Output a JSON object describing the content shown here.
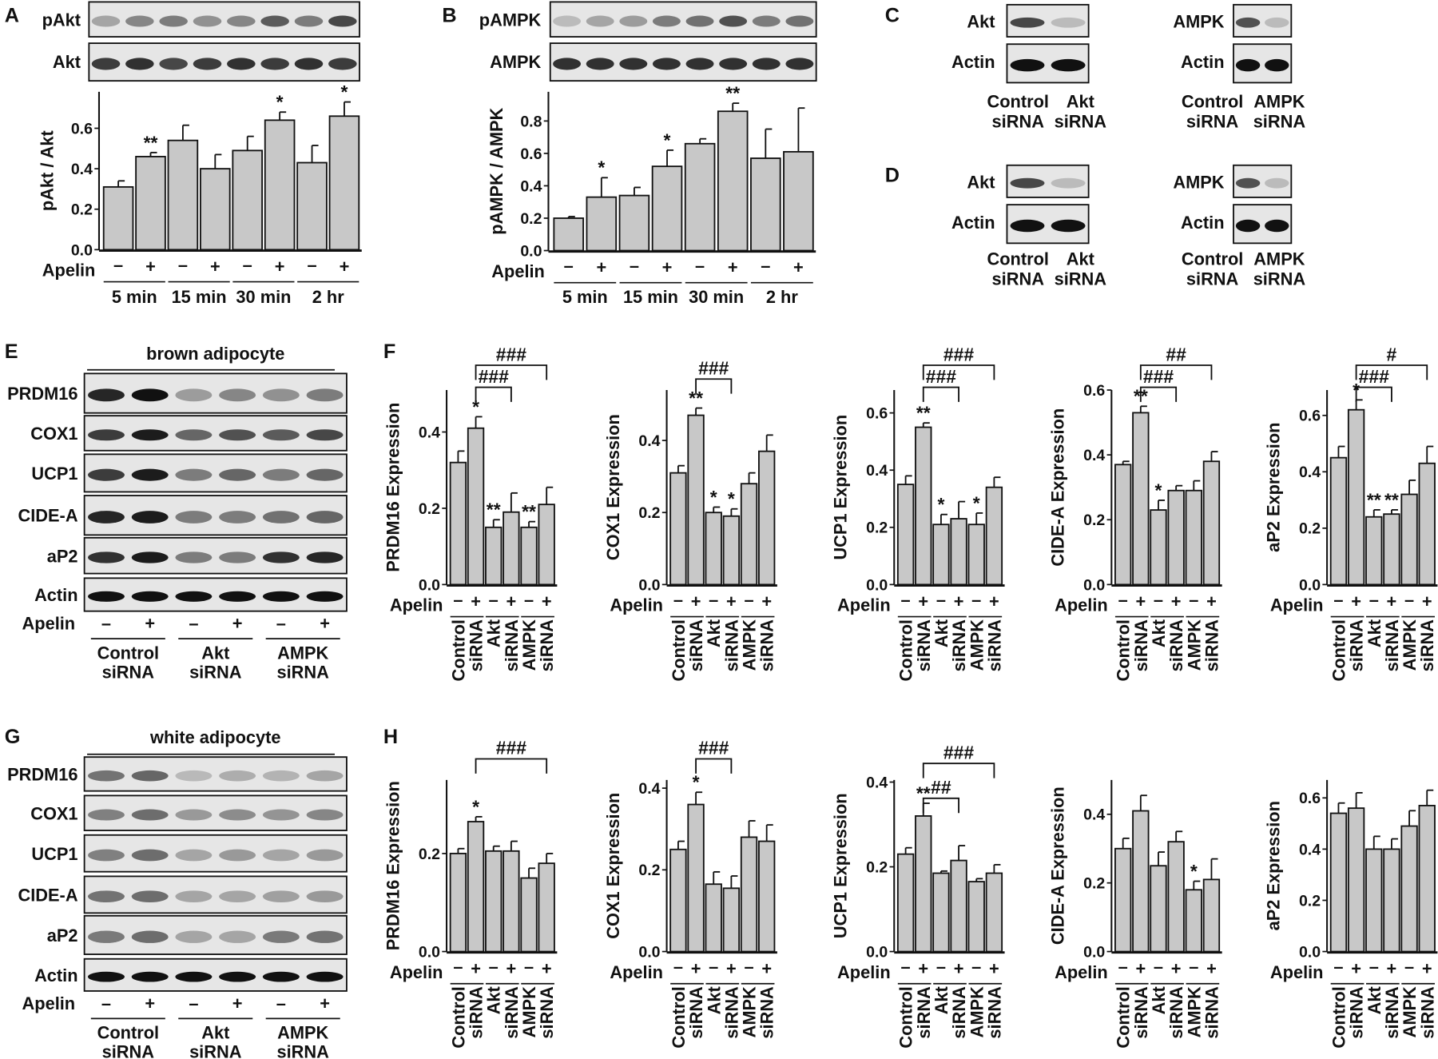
{
  "panel_labels": [
    "A",
    "B",
    "C",
    "D",
    "E",
    "F",
    "G",
    "H"
  ],
  "blots": {
    "A": {
      "rows": [
        "pAkt",
        "Akt"
      ]
    },
    "B": {
      "rows": [
        "pAMPK",
        "AMPK"
      ]
    },
    "C": {
      "left": {
        "rows": [
          "Akt",
          "Actin"
        ],
        "lanes": [
          [
            "Control",
            "siRNA"
          ],
          [
            "Akt",
            "siRNA"
          ]
        ]
      },
      "right": {
        "rows": [
          "AMPK",
          "Actin"
        ],
        "lanes": [
          [
            "Control",
            "siRNA"
          ],
          [
            "AMPK",
            "siRNA"
          ]
        ]
      }
    },
    "D": {
      "left": {
        "rows": [
          "Akt",
          "Actin"
        ],
        "lanes": [
          [
            "Control",
            "siRNA"
          ],
          [
            "Akt",
            "siRNA"
          ]
        ]
      },
      "right": {
        "rows": [
          "AMPK",
          "Actin"
        ],
        "lanes": [
          [
            "Control",
            "siRNA"
          ],
          [
            "AMPK",
            "siRNA"
          ]
        ]
      }
    },
    "E": {
      "title": "brown adipocyte",
      "rows": [
        "PRDM16",
        "COX1",
        "UCP1",
        "CIDE-A",
        "aP2",
        "Actin"
      ],
      "apelin_label": "Apelin",
      "signs": [
        "–",
        "+",
        "–",
        "+",
        "–",
        "+"
      ],
      "groups": [
        [
          "Control",
          "siRNA"
        ],
        [
          "Akt",
          "siRNA"
        ],
        [
          "AMPK",
          "siRNA"
        ]
      ]
    },
    "G": {
      "title": "white adipocyte",
      "rows": [
        "PRDM16",
        "COX1",
        "UCP1",
        "CIDE-A",
        "aP2",
        "Actin"
      ],
      "apelin_label": "Apelin",
      "signs": [
        "–",
        "+",
        "–",
        "+",
        "–",
        "+"
      ],
      "groups": [
        [
          "Control",
          "siRNA"
        ],
        [
          "Akt",
          "siRNA"
        ],
        [
          "AMPK",
          "siRNA"
        ]
      ]
    }
  },
  "chart_data": [
    {
      "id": "A",
      "type": "bar",
      "ylabel": "pAkt / Akt",
      "ylim": [
        0,
        0.78
      ],
      "yticks": [
        "0.0",
        "0.2",
        "0.4",
        "0.6"
      ],
      "ytick_values": [
        0,
        0.2,
        0.4,
        0.6
      ],
      "x_row_label": "Apelin",
      "apelin": [
        "–",
        "+",
        "–",
        "+",
        "–",
        "+",
        "–",
        "+"
      ],
      "groups": [
        "5 min",
        "15 min",
        "30 min",
        "2 hr"
      ],
      "values": [
        0.31,
        0.46,
        0.54,
        0.4,
        0.49,
        0.64,
        0.43,
        0.66
      ],
      "errors": [
        0.03,
        0.02,
        0.075,
        0.07,
        0.07,
        0.04,
        0.085,
        0.07
      ],
      "significance": [
        "",
        "**",
        "",
        "",
        "",
        "*",
        "",
        "*"
      ],
      "brackets": []
    },
    {
      "id": "B",
      "type": "bar",
      "ylabel": "pAMPK / AMPK",
      "ylim": [
        0,
        0.98
      ],
      "yticks": [
        "0.0",
        "0.2",
        "0.4",
        "0.6",
        "0.8"
      ],
      "ytick_values": [
        0,
        0.2,
        0.4,
        0.6,
        0.8
      ],
      "x_row_label": "Apelin",
      "apelin": [
        "–",
        "+",
        "–",
        "+",
        "–",
        "+",
        "–",
        "+"
      ],
      "groups": [
        "5 min",
        "15 min",
        "30 min",
        "2 hr"
      ],
      "values": [
        0.2,
        0.33,
        0.34,
        0.52,
        0.66,
        0.86,
        0.57,
        0.61
      ],
      "errors": [
        0.01,
        0.12,
        0.05,
        0.1,
        0.03,
        0.05,
        0.18,
        0.27
      ],
      "significance": [
        "",
        "*",
        "",
        "*",
        "",
        "**",
        "",
        ""
      ],
      "brackets": []
    },
    {
      "id": "F1",
      "type": "bar",
      "ylabel": "PRDM16 Expression",
      "ylim": [
        0,
        0.51
      ],
      "yticks": [
        "0.0",
        "0.2",
        "0.4"
      ],
      "ytick_values": [
        0,
        0.2,
        0.4
      ],
      "x_row_label": "Apelin",
      "apelin": [
        "–",
        "+",
        "–",
        "+",
        "–",
        "+"
      ],
      "groups": [
        [
          "Control",
          "siRNA"
        ],
        [
          "Akt",
          "siRNA"
        ],
        [
          "AMPK",
          "siRNA"
        ]
      ],
      "values": [
        0.32,
        0.41,
        0.15,
        0.19,
        0.15,
        0.21
      ],
      "errors": [
        0.03,
        0.03,
        0.02,
        0.05,
        0.015,
        0.045
      ],
      "significance": [
        "",
        "*",
        "**",
        "",
        "**",
        ""
      ],
      "brackets": [
        {
          "from": 1,
          "to": 3,
          "label": "###"
        },
        {
          "from": 1,
          "to": 5,
          "label": "###"
        }
      ]
    },
    {
      "id": "F2",
      "type": "bar",
      "ylabel": "COX1 Expression",
      "ylim": [
        0,
        0.54
      ],
      "yticks": [
        "0.0",
        "0.2",
        "0.4"
      ],
      "ytick_values": [
        0,
        0.2,
        0.4
      ],
      "x_row_label": "Apelin",
      "apelin": [
        "–",
        "+",
        "–",
        "+",
        "–",
        "+"
      ],
      "groups": [
        [
          "Control",
          "siRNA"
        ],
        [
          "Akt",
          "siRNA"
        ],
        [
          "AMPK",
          "siRNA"
        ]
      ],
      "values": [
        0.31,
        0.47,
        0.2,
        0.19,
        0.28,
        0.37
      ],
      "errors": [
        0.02,
        0.02,
        0.015,
        0.02,
        0.03,
        0.045
      ],
      "significance": [
        "",
        "**",
        "*",
        "*",
        "",
        ""
      ],
      "brackets": [
        {
          "from": 1,
          "to": 3,
          "label": "###"
        }
      ]
    },
    {
      "id": "F3",
      "type": "bar",
      "ylabel": "UCP1 Expression",
      "ylim": [
        0,
        0.68
      ],
      "yticks": [
        "0.0",
        "0.2",
        "0.4",
        "0.6"
      ],
      "ytick_values": [
        0,
        0.2,
        0.4,
        0.6
      ],
      "x_row_label": "Apelin",
      "apelin": [
        "–",
        "+",
        "–",
        "+",
        "–",
        "+"
      ],
      "groups": [
        [
          "Control",
          "siRNA"
        ],
        [
          "Akt",
          "siRNA"
        ],
        [
          "AMPK",
          "siRNA"
        ]
      ],
      "values": [
        0.35,
        0.55,
        0.21,
        0.23,
        0.21,
        0.34
      ],
      "errors": [
        0.03,
        0.015,
        0.035,
        0.06,
        0.04,
        0.035
      ],
      "significance": [
        "",
        "**",
        "*",
        "",
        "*",
        ""
      ],
      "brackets": [
        {
          "from": 1,
          "to": 3,
          "label": "###"
        },
        {
          "from": 1,
          "to": 5,
          "label": "###"
        }
      ]
    },
    {
      "id": "F4",
      "type": "bar",
      "ylabel": "CIDE-A Expression",
      "ylim": [
        0,
        0.6
      ],
      "yticks": [
        "0.0",
        "0.2",
        "0.4",
        "0.6"
      ],
      "ytick_values": [
        0,
        0.2,
        0.4,
        0.6
      ],
      "x_row_label": "Apelin",
      "apelin": [
        "–",
        "+",
        "–",
        "+",
        "–",
        "+"
      ],
      "groups": [
        [
          "Control",
          "siRNA"
        ],
        [
          "Akt",
          "siRNA"
        ],
        [
          "AMPK",
          "siRNA"
        ]
      ],
      "values": [
        0.37,
        0.53,
        0.23,
        0.29,
        0.29,
        0.38
      ],
      "errors": [
        0.01,
        0.02,
        0.03,
        0.015,
        0.03,
        0.03
      ],
      "significance": [
        "",
        "**",
        "*",
        "",
        "",
        ""
      ],
      "brackets": [
        {
          "from": 1,
          "to": 3,
          "label": "###"
        },
        {
          "from": 1,
          "to": 5,
          "label": "##"
        }
      ]
    },
    {
      "id": "F5",
      "type": "bar",
      "ylabel": "aP2 Expression",
      "ylim": [
        0,
        0.69
      ],
      "yticks": [
        "0.0",
        "0.2",
        "0.4",
        "0.6"
      ],
      "ytick_values": [
        0,
        0.2,
        0.4,
        0.6
      ],
      "x_row_label": "Apelin",
      "apelin": [
        "–",
        "+",
        "–",
        "+",
        "–",
        "+"
      ],
      "groups": [
        [
          "Control",
          "siRNA"
        ],
        [
          "Akt",
          "siRNA"
        ],
        [
          "AMPK",
          "siRNA"
        ]
      ],
      "values": [
        0.45,
        0.62,
        0.24,
        0.25,
        0.32,
        0.43
      ],
      "errors": [
        0.04,
        0.035,
        0.025,
        0.015,
        0.05,
        0.06
      ],
      "significance": [
        "",
        "*",
        "**",
        "**",
        "",
        ""
      ],
      "brackets": [
        {
          "from": 1,
          "to": 3,
          "label": "###"
        },
        {
          "from": 1,
          "to": 5,
          "label": "#"
        }
      ]
    },
    {
      "id": "H1",
      "type": "bar",
      "ylabel": "PRDM16 Expression",
      "ylim": [
        0,
        0.35
      ],
      "yticks": [
        "0.0",
        "0.2"
      ],
      "ytick_values": [
        0,
        0.2
      ],
      "x_row_label": "Apelin",
      "apelin": [
        "–",
        "+",
        "–",
        "+",
        "–",
        "+"
      ],
      "groups": [
        [
          "Control",
          "siRNA"
        ],
        [
          "Akt",
          "siRNA"
        ],
        [
          "AMPK",
          "siRNA"
        ]
      ],
      "values": [
        0.2,
        0.265,
        0.205,
        0.205,
        0.15,
        0.18
      ],
      "errors": [
        0.01,
        0.01,
        0.01,
        0.02,
        0.02,
        0.02
      ],
      "significance": [
        "",
        "*",
        "",
        "",
        "",
        ""
      ],
      "brackets": [
        {
          "from": 1,
          "to": 5,
          "label": "###"
        }
      ]
    },
    {
      "id": "H2",
      "type": "bar",
      "ylabel": "COX1 Expression",
      "ylim": [
        0,
        0.42
      ],
      "yticks": [
        "0.0",
        "0.2",
        "0.4"
      ],
      "ytick_values": [
        0,
        0.2,
        0.4
      ],
      "x_row_label": "Apelin",
      "apelin": [
        "–",
        "+",
        "–",
        "+",
        "–",
        "+"
      ],
      "groups": [
        [
          "Control",
          "siRNA"
        ],
        [
          "Akt",
          "siRNA"
        ],
        [
          "AMPK",
          "siRNA"
        ]
      ],
      "values": [
        0.25,
        0.36,
        0.165,
        0.155,
        0.28,
        0.27
      ],
      "errors": [
        0.02,
        0.03,
        0.03,
        0.03,
        0.04,
        0.04
      ],
      "significance": [
        "",
        "*",
        "",
        "",
        "",
        ""
      ],
      "brackets": [
        {
          "from": 1,
          "to": 3,
          "label": "###"
        }
      ]
    },
    {
      "id": "H3",
      "type": "bar",
      "ylabel": "UCP1 Expression",
      "ylim": [
        0,
        0.405
      ],
      "yticks": [
        "0.0",
        "0.2",
        "0.4"
      ],
      "ytick_values": [
        0,
        0.2,
        0.4
      ],
      "x_row_label": "Apelin",
      "apelin": [
        "–",
        "+",
        "–",
        "+",
        "–",
        "+"
      ],
      "groups": [
        [
          "Control",
          "siRNA"
        ],
        [
          "Akt",
          "siRNA"
        ],
        [
          "AMPK",
          "siRNA"
        ]
      ],
      "values": [
        0.23,
        0.32,
        0.185,
        0.215,
        0.165,
        0.185
      ],
      "errors": [
        0.015,
        0.03,
        0.005,
        0.035,
        0.007,
        0.02
      ],
      "significance": [
        "",
        "**",
        "",
        "",
        "",
        ""
      ],
      "brackets": [
        {
          "from": 1,
          "to": 3,
          "label": "##"
        },
        {
          "from": 1,
          "to": 5,
          "label": "###"
        }
      ]
    },
    {
      "id": "H4",
      "type": "bar",
      "ylabel": "CIDE-A Expression",
      "ylim": [
        0,
        0.5
      ],
      "yticks": [
        "0.0",
        "0.2",
        "0.4"
      ],
      "ytick_values": [
        0,
        0.2,
        0.4
      ],
      "x_row_label": "Apelin",
      "apelin": [
        "–",
        "+",
        "–",
        "+",
        "–",
        "+"
      ],
      "groups": [
        [
          "Control",
          "siRNA"
        ],
        [
          "Akt",
          "siRNA"
        ],
        [
          "AMPK",
          "siRNA"
        ]
      ],
      "values": [
        0.3,
        0.41,
        0.25,
        0.32,
        0.18,
        0.21
      ],
      "errors": [
        0.03,
        0.045,
        0.04,
        0.03,
        0.025,
        0.06
      ],
      "significance": [
        "",
        "",
        "",
        "",
        "*",
        ""
      ],
      "brackets": []
    },
    {
      "id": "H5",
      "type": "bar",
      "ylabel": "aP2 Expression",
      "ylim": [
        0,
        0.67
      ],
      "yticks": [
        "0.0",
        "0.2",
        "0.4",
        "0.6"
      ],
      "ytick_values": [
        0,
        0.2,
        0.4,
        0.6
      ],
      "x_row_label": "Apelin",
      "apelin": [
        "–",
        "+",
        "–",
        "+",
        "–",
        "+"
      ],
      "groups": [
        [
          "Control",
          "siRNA"
        ],
        [
          "Akt",
          "siRNA"
        ],
        [
          "AMPK",
          "siRNA"
        ]
      ],
      "values": [
        0.54,
        0.56,
        0.4,
        0.4,
        0.49,
        0.57
      ],
      "errors": [
        0.04,
        0.06,
        0.05,
        0.04,
        0.06,
        0.06
      ],
      "significance": [
        "",
        "",
        "",
        "",
        "",
        ""
      ],
      "brackets": []
    }
  ]
}
